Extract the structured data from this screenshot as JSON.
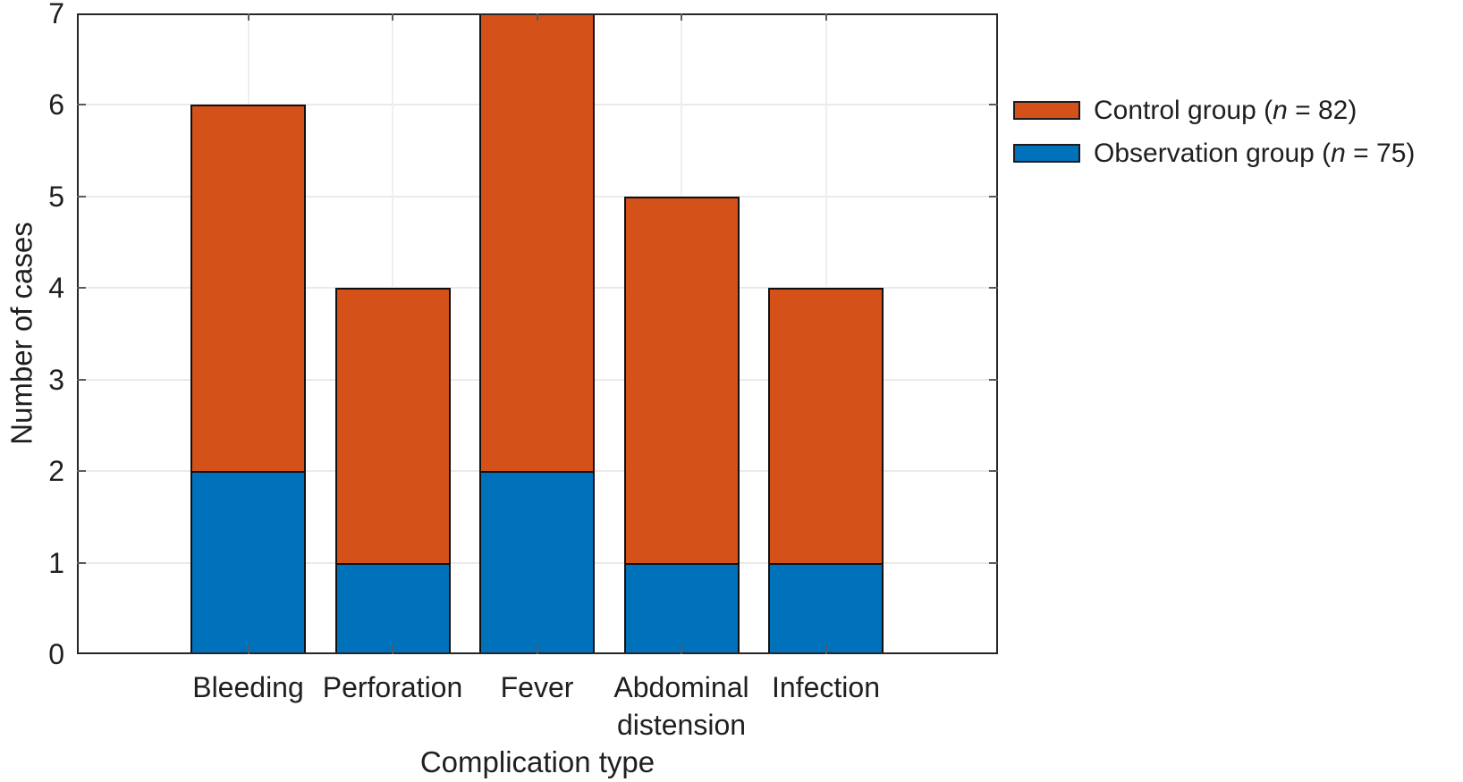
{
  "chart_data": {
    "type": "bar",
    "stacked": true,
    "xlabel": "Complication type",
    "ylabel": "Number of cases",
    "categories": [
      "Bleeding",
      "Perforation",
      "Fever",
      "Abdominal distension",
      "Infection"
    ],
    "series": [
      {
        "name": "Observation group (n = 75)",
        "color": "#0072BC",
        "values": [
          2,
          1,
          2,
          1,
          1
        ]
      },
      {
        "name": "Control group (n = 82)",
        "color": "#D4521A",
        "values": [
          4,
          3,
          5,
          4,
          3
        ]
      }
    ],
    "stack_totals": [
      6,
      4,
      7,
      5,
      4
    ],
    "ylim": [
      0,
      7
    ],
    "yticks": [
      0,
      1,
      2,
      3,
      4,
      5,
      6,
      7
    ],
    "grid": "both-light",
    "legend_position": "outside-right-top"
  },
  "legend": {
    "items": [
      {
        "pre": "Control group (",
        "n_var": "n",
        "post": " = 82)",
        "color": "#D4521A"
      },
      {
        "pre": "Observation group (",
        "n_var": "n",
        "post": " = 75)",
        "color": "#0072BC"
      }
    ]
  },
  "colors": {
    "control_orange": "#D4521A",
    "observation_blue": "#0072BC",
    "axis_frame": "#262626",
    "gridline": "#EAEAEA",
    "tick_mark": "#5A5A5A",
    "text": "#1F1F1F",
    "bar_border": "#101010",
    "background": "#FFFFFF"
  }
}
